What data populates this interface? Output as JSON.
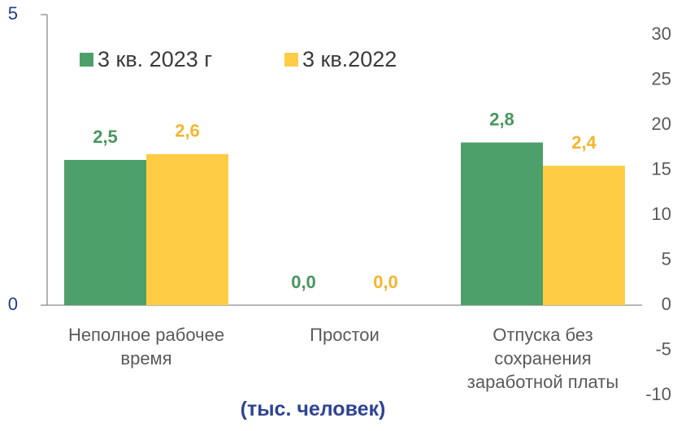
{
  "chart_data": {
    "type": "bar",
    "categories": [
      "Неполное рабочее время",
      "Простои",
      "Отпуска без сохранения заработной платы"
    ],
    "series": [
      {
        "name": "3 кв. 2023 г",
        "color": "#4ea06a",
        "label_color": "#47965f",
        "values": [
          2.5,
          0,
          2.8
        ],
        "value_labels": [
          "2,5",
          "0,0",
          "2,8"
        ]
      },
      {
        "name": "3 кв.2022",
        "color": "#ffcc44",
        "label_color": "#f4b52d",
        "values": [
          2.6,
          0,
          2.4
        ],
        "value_labels": [
          "2,6",
          "0,0",
          "2,4"
        ]
      }
    ],
    "ylim": [
      0,
      5
    ],
    "yticks": [
      0,
      5
    ],
    "y2lim": [
      -10,
      30
    ],
    "y2ticks": [
      -10,
      -5,
      0,
      5,
      10,
      15,
      20,
      25,
      30
    ],
    "legend": "top-left",
    "annotation": "(тыс. человек)"
  }
}
